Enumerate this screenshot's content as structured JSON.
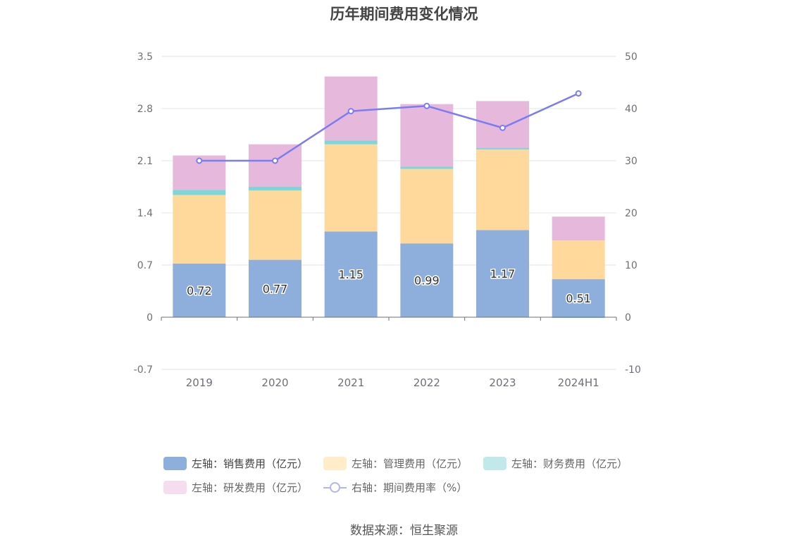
{
  "chart_data": {
    "type": "bar",
    "title": "历年期间费用变化情况",
    "categories": [
      "2019",
      "2020",
      "2021",
      "2022",
      "2023",
      "2024H1"
    ],
    "left_axis": {
      "ticks": [
        "-0.7",
        "0",
        "0.7",
        "1.4",
        "2.1",
        "2.8",
        "3.5"
      ],
      "ylim": [
        -0.7,
        3.5
      ]
    },
    "right_axis": {
      "ticks": [
        "-10",
        "0",
        "10",
        "20",
        "30",
        "40",
        "50"
      ],
      "ylim": [
        -10,
        50
      ]
    },
    "series": [
      {
        "name": "左轴：销售费用（亿元）",
        "axis": "left",
        "type": "bar",
        "color": "#8eaedb",
        "values": [
          0.72,
          0.77,
          1.15,
          0.99,
          1.17,
          0.51
        ],
        "labels": [
          "0.72",
          "0.77",
          "1.15",
          "0.99",
          "1.17",
          "0.51"
        ]
      },
      {
        "name": "左轴：管理费用（亿元）",
        "axis": "left",
        "type": "bar",
        "color": "#ffd89b",
        "values": [
          0.92,
          0.93,
          1.17,
          1.0,
          1.08,
          0.52
        ]
      },
      {
        "name": "左轴：财务费用（亿元）",
        "axis": "left",
        "type": "bar",
        "color": "#7ed6d8",
        "values": [
          0.07,
          0.05,
          0.05,
          0.03,
          0.02,
          -0.01
        ]
      },
      {
        "name": "左轴：研发费用（亿元）",
        "axis": "left",
        "type": "bar",
        "color": "#e6b8dc",
        "values": [
          0.46,
          0.57,
          0.86,
          0.84,
          0.63,
          0.32
        ]
      },
      {
        "name": "右轴：期间费用率（%）",
        "axis": "right",
        "type": "line",
        "color": "#7b7cf0",
        "values": [
          30.0,
          30.0,
          39.5,
          40.5,
          36.3,
          42.9
        ]
      }
    ]
  },
  "legend_colors": [
    "#8eaedb",
    "#ffecc9",
    "#c2e9ea",
    "#f3ddef",
    "#b3b4f7"
  ],
  "source": "数据来源：恒生聚源"
}
